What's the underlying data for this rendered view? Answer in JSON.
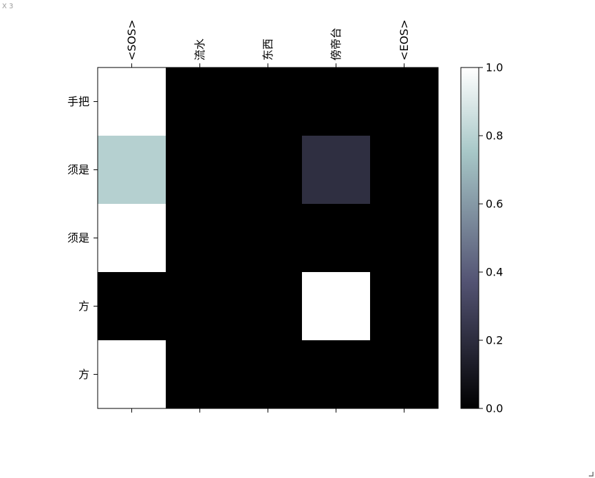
{
  "window": {
    "label": "X 3"
  },
  "chart_data": {
    "type": "heatmap",
    "title": "",
    "xlabel": "",
    "ylabel": "",
    "x_labels": [
      "<SOS>",
      "流水",
      "东西",
      "傍帝台",
      "<EOS>"
    ],
    "y_labels": [
      "手把",
      "须是",
      "须是",
      "方",
      "方"
    ],
    "values": [
      [
        1.0,
        0.0,
        0.0,
        0.0,
        0.0
      ],
      [
        0.79,
        0.0,
        0.0,
        0.21,
        0.0
      ],
      [
        1.0,
        0.0,
        0.0,
        0.0,
        0.0
      ],
      [
        0.0,
        0.0,
        0.0,
        1.0,
        0.0
      ],
      [
        1.0,
        0.0,
        0.0,
        0.0,
        0.0
      ]
    ],
    "colormap": "bone",
    "x_ticks_position": "top",
    "colorbar": {
      "range": [
        0.0,
        1.0
      ],
      "ticks": [
        0.0,
        0.2,
        0.4,
        0.6,
        0.8,
        1.0
      ],
      "tick_labels": [
        "0.0",
        "0.2",
        "0.4",
        "0.6",
        "0.8",
        "1.0"
      ],
      "placement": "right"
    }
  }
}
